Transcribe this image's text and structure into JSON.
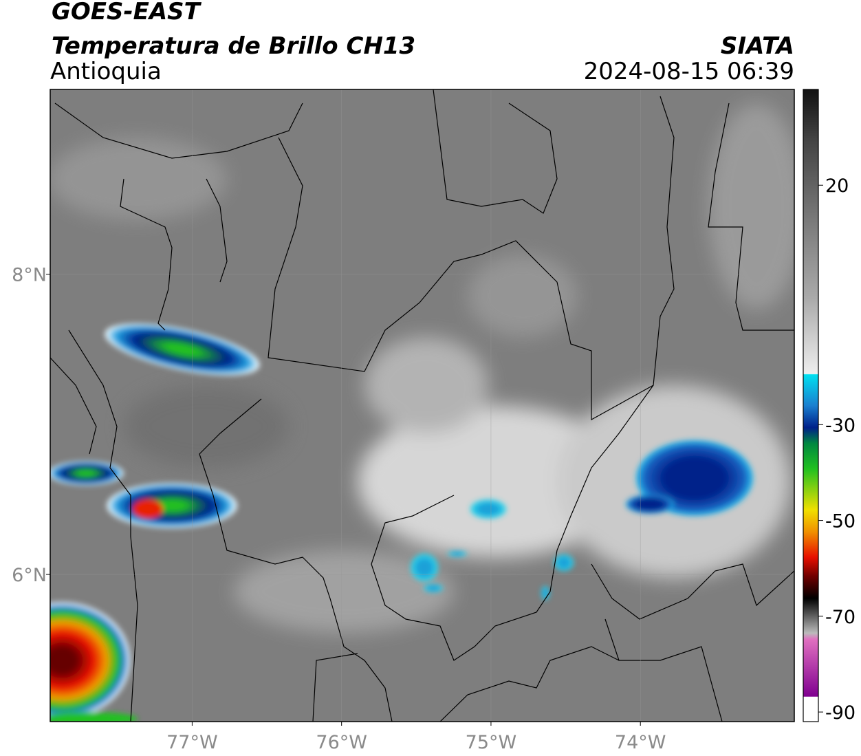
{
  "header": {
    "title": "GOES-EAST",
    "subtitle": "Temperatura de Brillo CH13",
    "region": "Antioquia",
    "source": "SIATA",
    "datetime": "2024-08-15 06:39"
  },
  "map": {
    "xlim": [
      -77.95,
      -72.97
    ],
    "ylim": [
      5.02,
      9.23
    ],
    "xticks": [
      {
        "value": -77,
        "label": "77°W"
      },
      {
        "value": -76,
        "label": "76°W"
      },
      {
        "value": -75,
        "label": "75°W"
      },
      {
        "value": -74,
        "label": "74°W"
      }
    ],
    "yticks": [
      {
        "value": 6,
        "label": "6°N"
      },
      {
        "value": 8,
        "label": "8°N"
      }
    ]
  },
  "colorbar": {
    "lim": [
      -92,
      40
    ],
    "ticks": [
      20,
      -30,
      -50,
      -70,
      -90
    ]
  }
}
